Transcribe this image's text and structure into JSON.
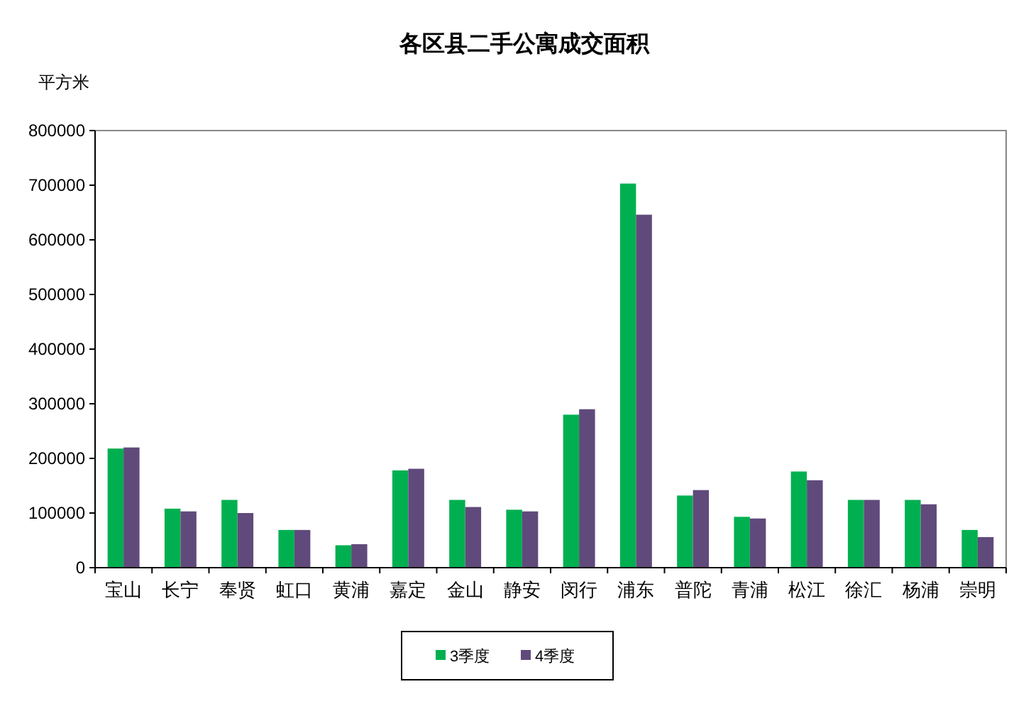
{
  "chart_data": {
    "type": "bar",
    "title": "各区县二手公寓成交面积",
    "ylabel": "平方米",
    "categories": [
      "宝山",
      "长宁",
      "奉贤",
      "虹口",
      "黄浦",
      "嘉定",
      "金山",
      "静安",
      "闵行",
      "浦东",
      "普陀",
      "青浦",
      "松江",
      "徐汇",
      "杨浦",
      "崇明"
    ],
    "series": [
      {
        "name": "3季度",
        "color": "#00b050",
        "values": [
          218000,
          108000,
          124000,
          69000,
          41000,
          178000,
          124000,
          106000,
          280000,
          703000,
          132000,
          93000,
          176000,
          124000,
          124000,
          69000
        ]
      },
      {
        "name": "4季度",
        "color": "#604a7b",
        "values": [
          220000,
          103000,
          100000,
          69000,
          43000,
          181000,
          111000,
          103000,
          290000,
          646000,
          142000,
          90000,
          160000,
          124000,
          116000,
          56000
        ]
      }
    ],
    "ylim": [
      0,
      800000
    ],
    "yticks": [
      0,
      100000,
      200000,
      300000,
      400000,
      500000,
      600000,
      700000,
      800000
    ],
    "grid": false,
    "legend": "bottom"
  }
}
